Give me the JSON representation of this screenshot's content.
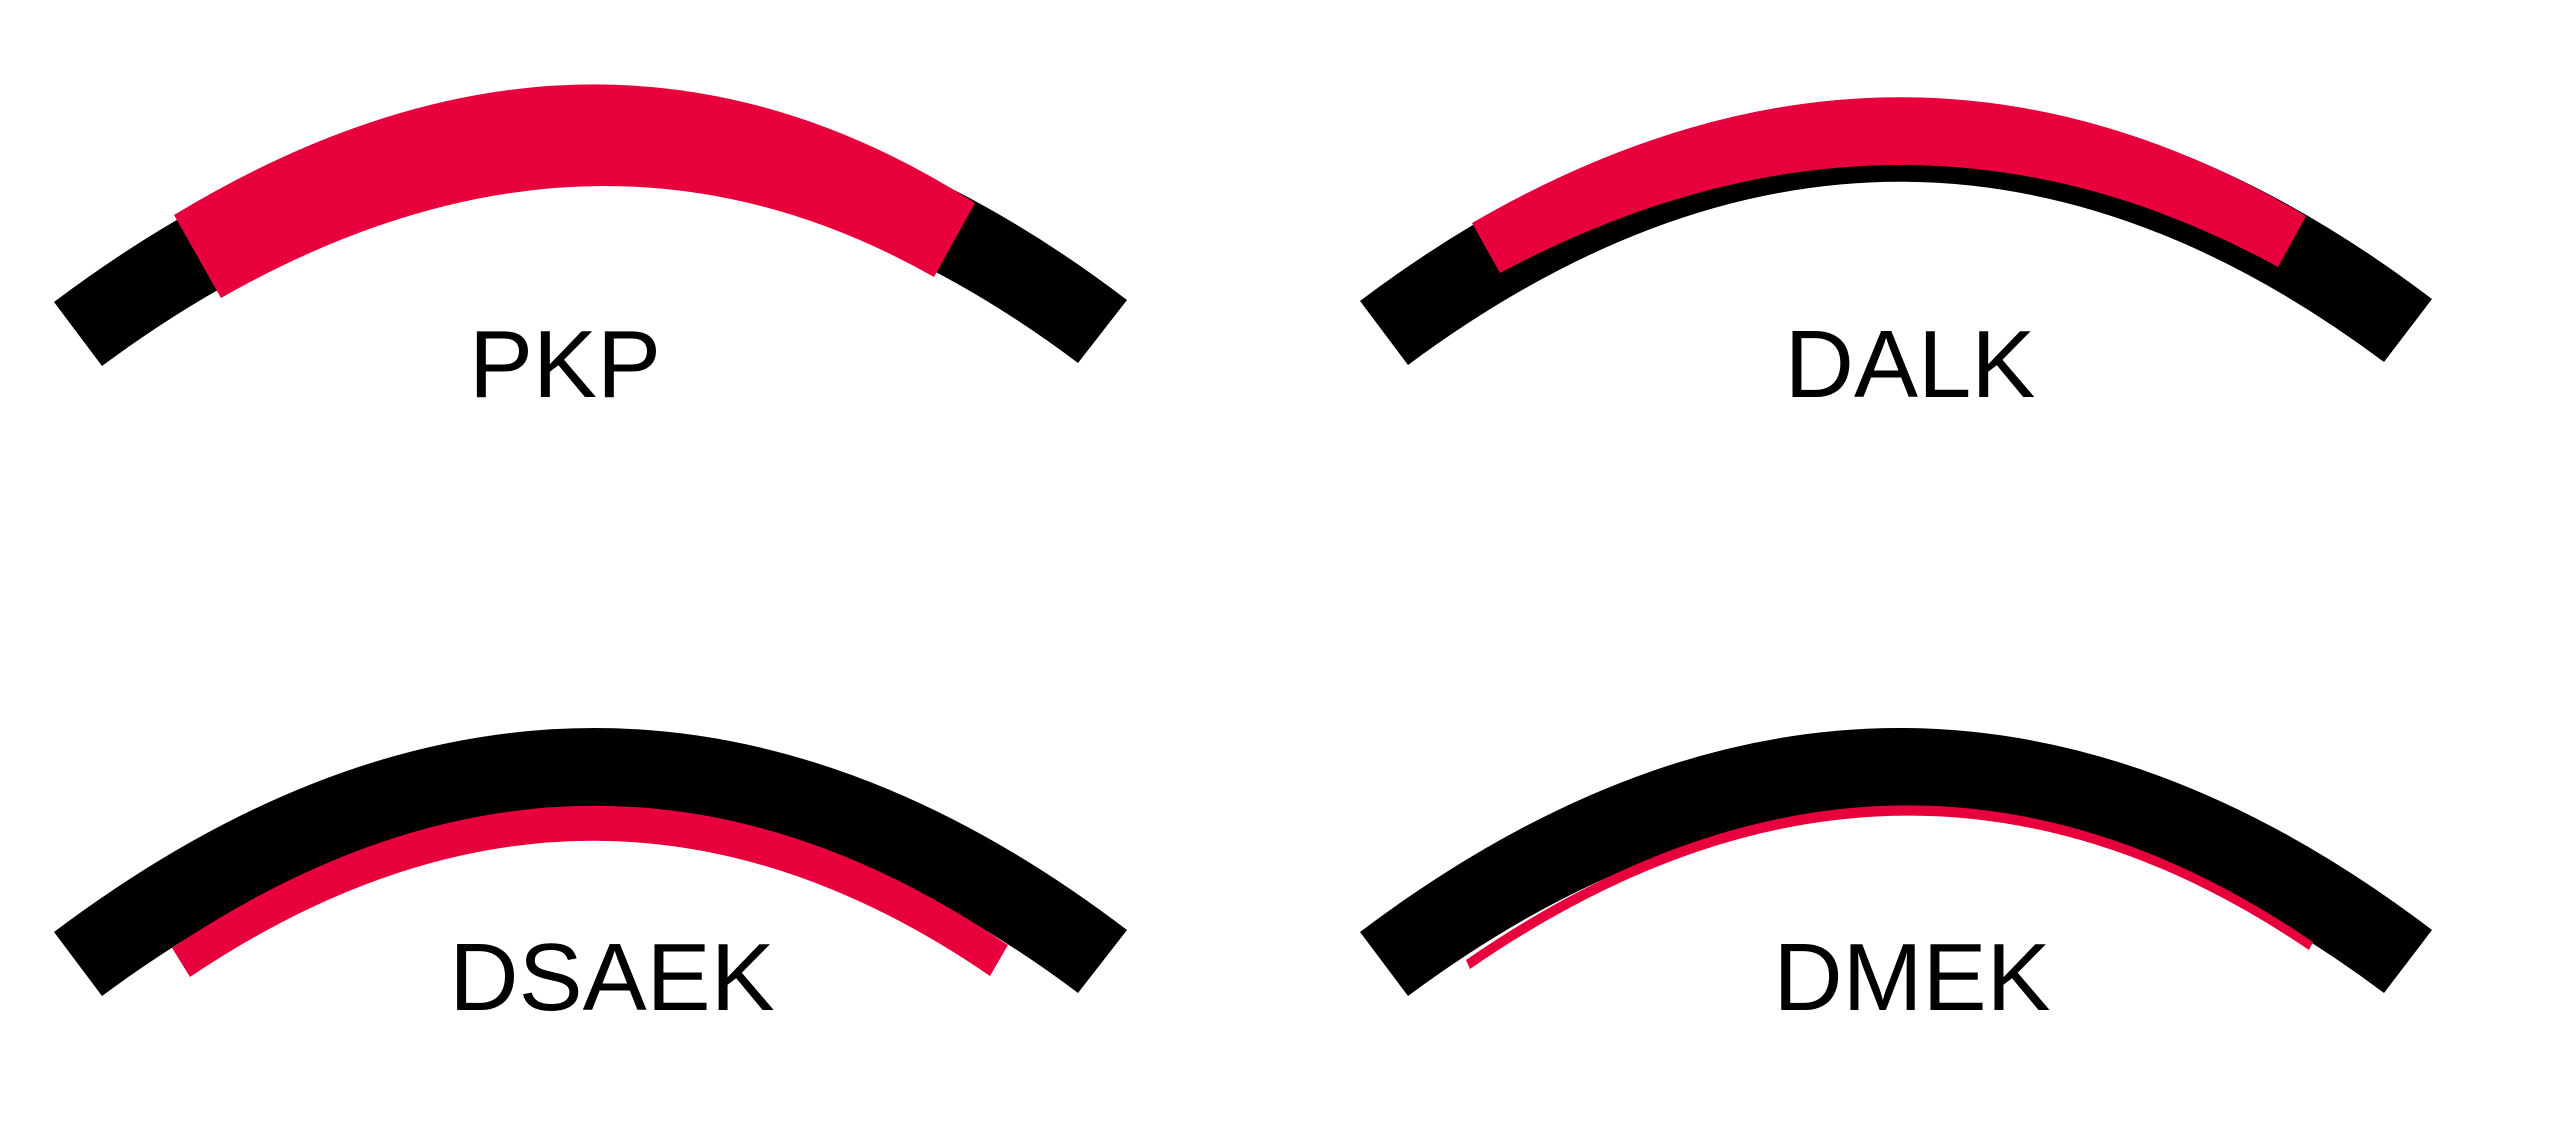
{
  "colors": {
    "cornea": "#000000",
    "graft": "#e8003d",
    "background": "#ffffff"
  },
  "panels": [
    {
      "id": "pkp",
      "label": "PKP"
    },
    {
      "id": "dalk",
      "label": "DALK"
    },
    {
      "id": "dsaek",
      "label": "DSAEK"
    },
    {
      "id": "dmek",
      "label": "DMEK"
    }
  ]
}
